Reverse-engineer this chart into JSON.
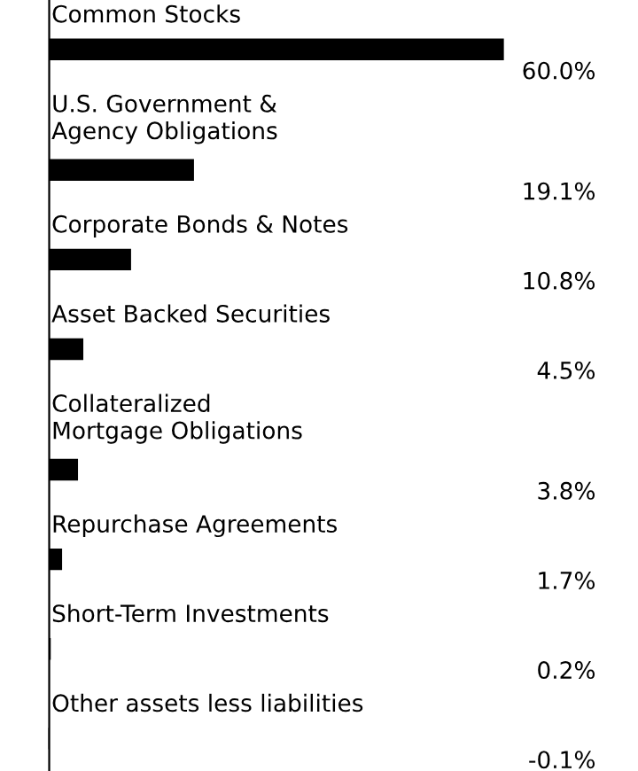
{
  "chart_data": {
    "type": "bar",
    "orientation": "horizontal",
    "categories": [
      "Common Stocks",
      "U.S. Government &\nAgency Obligations",
      "Corporate Bonds & Notes",
      "Asset Backed Securities",
      "Collateralized\nMortgage Obligations",
      "Repurchase Agreements",
      "Short-Term Investments",
      "Other assets less liabilities"
    ],
    "values": [
      60.0,
      19.1,
      10.8,
      4.5,
      3.8,
      1.7,
      0.2,
      -0.1
    ],
    "value_labels": [
      "60.0%",
      "19.1%",
      "10.8%",
      "4.5%",
      "3.8%",
      "1.7%",
      "0.2%",
      "-0.1%"
    ],
    "color": "#000000"
  }
}
